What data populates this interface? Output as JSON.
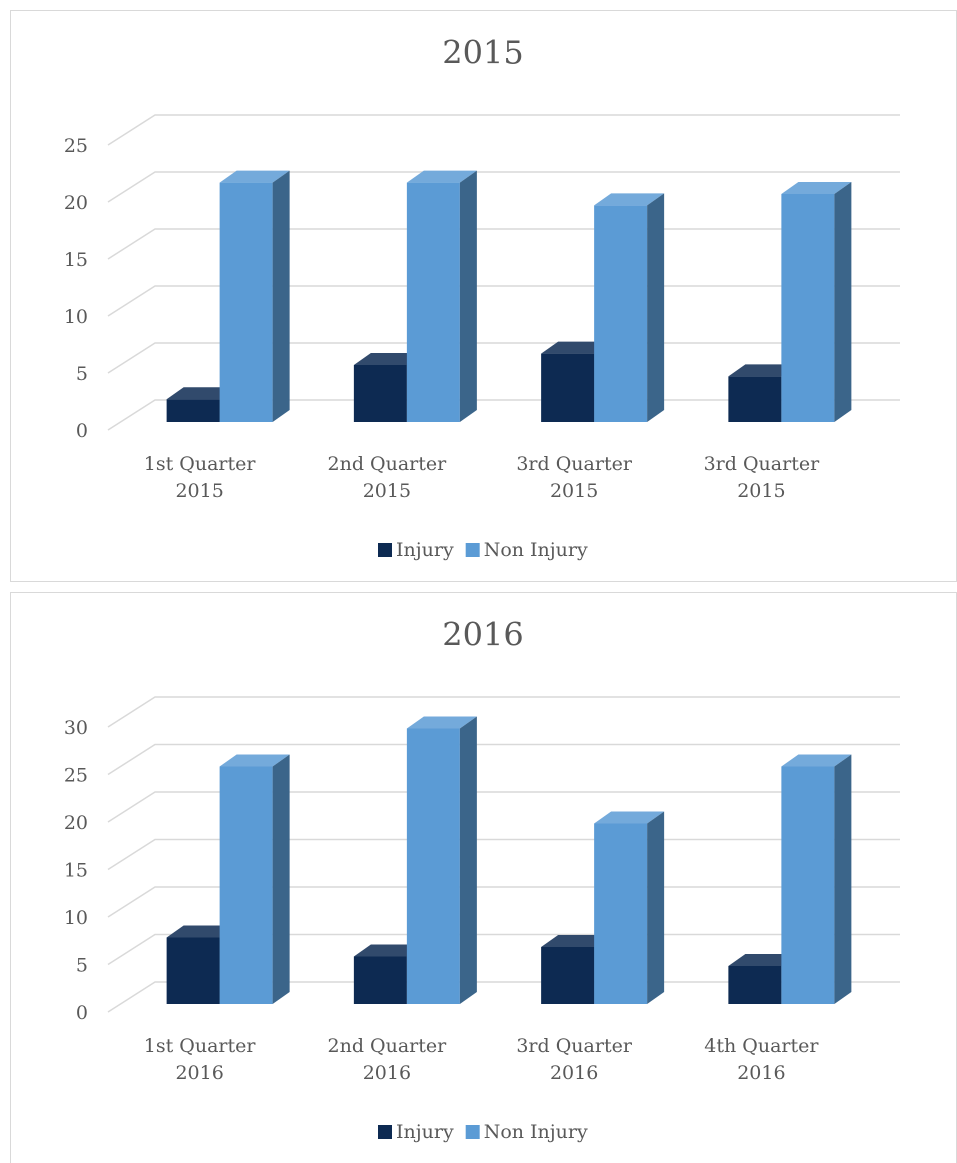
{
  "chart_data": [
    {
      "type": "bar",
      "title": "2015",
      "categories": [
        "1st Quarter 2015",
        "2nd Quarter 2015",
        "3rd Quarter 2015",
        "3rd Quarter 2015"
      ],
      "series": [
        {
          "name": "Injury",
          "color": "#0d2a52",
          "values": [
            2,
            5,
            6,
            4
          ]
        },
        {
          "name": "Non Injury",
          "color": "#5b9bd5",
          "values": [
            21,
            21,
            19,
            20
          ]
        }
      ],
      "ylim": [
        0,
        25
      ],
      "yticks": [
        0,
        5,
        10,
        15,
        20,
        25
      ],
      "grid": true,
      "legend": "bottom"
    },
    {
      "type": "bar",
      "title": "2016",
      "categories": [
        "1st Quarter 2016",
        "2nd Quarter 2016",
        "3rd Quarter 2016",
        "4th Quarter 2016"
      ],
      "series": [
        {
          "name": "Injury",
          "color": "#0d2a52",
          "values": [
            7,
            5,
            6,
            4
          ]
        },
        {
          "name": "Non Injury",
          "color": "#5b9bd5",
          "values": [
            25,
            29,
            19,
            25
          ]
        }
      ],
      "ylim": [
        0,
        30
      ],
      "yticks": [
        0,
        5,
        10,
        15,
        20,
        25,
        30
      ],
      "grid": true,
      "legend": "bottom"
    }
  ]
}
